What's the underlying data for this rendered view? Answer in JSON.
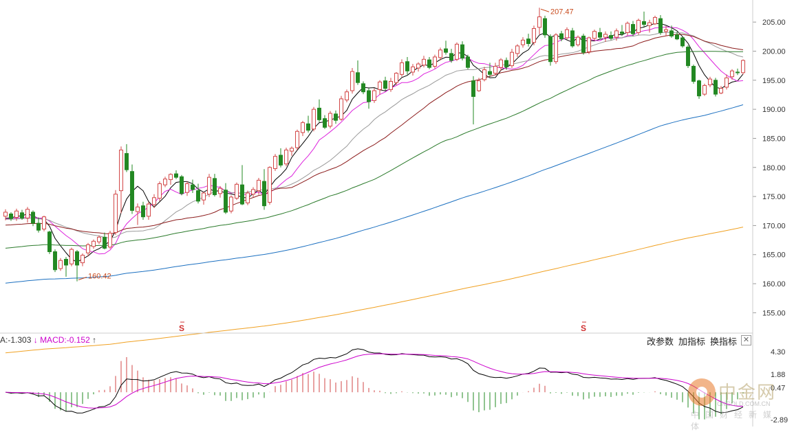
{
  "chart_data": {
    "type": "candlestick",
    "price_axis": {
      "ticks": [
        "205.00",
        "200.00",
        "195.00",
        "190.00",
        "185.00",
        "180.00",
        "175.00",
        "170.00",
        "165.00",
        "160.00",
        "155.00"
      ],
      "range": [
        151.5,
        208.8
      ]
    },
    "annotations": [
      {
        "label": "160.42",
        "index": 13,
        "value": 160.42
      },
      {
        "label": "207.47",
        "index": 97,
        "value": 207.47
      }
    ],
    "s_markers": [
      {
        "index": 32,
        "label": "S"
      },
      {
        "index": 105,
        "label": "S"
      }
    ],
    "candles_ohlc": [
      [
        171.6,
        172.8,
        170.9,
        172.3
      ],
      [
        172.0,
        172.3,
        170.8,
        171.2
      ],
      [
        171.4,
        172.9,
        170.8,
        172.5
      ],
      [
        172.2,
        172.7,
        171.0,
        171.3
      ],
      [
        171.3,
        173.2,
        170.5,
        172.8
      ],
      [
        172.3,
        172.6,
        169.9,
        170.4
      ],
      [
        170.4,
        171.4,
        168.8,
        169.2
      ],
      [
        169.4,
        171.7,
        169.0,
        171.5
      ],
      [
        168.9,
        169.1,
        165.1,
        165.5
      ],
      [
        165.5,
        165.9,
        162.0,
        162.4
      ],
      [
        162.6,
        164.4,
        162.2,
        164.0
      ],
      [
        164.2,
        164.6,
        161.2,
        163.2
      ],
      [
        163.4,
        166.2,
        163.0,
        165.9
      ],
      [
        165.5,
        165.8,
        160.4,
        163.2
      ],
      [
        163.6,
        165.2,
        163.0,
        164.9
      ],
      [
        165.3,
        167.0,
        164.7,
        166.7
      ],
      [
        166.4,
        167.6,
        166.0,
        167.3
      ],
      [
        167.2,
        168.3,
        166.8,
        168.0
      ],
      [
        168.0,
        168.8,
        165.9,
        166.1
      ],
      [
        166.3,
        169.1,
        166.0,
        168.7
      ],
      [
        168.8,
        176.1,
        168.4,
        175.4
      ],
      [
        176.0,
        183.6,
        172.1,
        183.0
      ],
      [
        182.4,
        184.0,
        179.2,
        179.6
      ],
      [
        179.3,
        180.5,
        172.0,
        172.6
      ],
      [
        172.4,
        173.8,
        170.1,
        173.2
      ],
      [
        173.4,
        174.1,
        171.0,
        171.5
      ],
      [
        171.6,
        174.1,
        171.0,
        173.7
      ],
      [
        173.6,
        175.4,
        173.0,
        174.8
      ],
      [
        174.7,
        177.6,
        174.2,
        177.2
      ],
      [
        177.0,
        178.4,
        176.6,
        178.0
      ],
      [
        177.9,
        179.0,
        177.0,
        178.8
      ],
      [
        178.9,
        179.5,
        178.0,
        178.3
      ],
      [
        178.4,
        178.7,
        175.2,
        175.5
      ],
      [
        175.7,
        177.6,
        175.1,
        177.2
      ],
      [
        177.0,
        177.9,
        175.6,
        176.2
      ],
      [
        176.0,
        177.2,
        173.8,
        174.2
      ],
      [
        174.4,
        175.8,
        173.6,
        175.6
      ],
      [
        175.4,
        178.9,
        174.9,
        178.3
      ],
      [
        178.1,
        178.9,
        175.0,
        175.3
      ],
      [
        175.5,
        176.8,
        174.8,
        176.4
      ],
      [
        176.1,
        177.3,
        172.0,
        172.3
      ],
      [
        172.5,
        175.2,
        172.1,
        174.9
      ],
      [
        174.7,
        177.4,
        174.4,
        177.1
      ],
      [
        177.0,
        180.4,
        173.5,
        173.7
      ],
      [
        173.9,
        176.0,
        173.5,
        175.6
      ],
      [
        175.4,
        176.6,
        174.9,
        176.2
      ],
      [
        176.0,
        178.2,
        175.3,
        177.8
      ],
      [
        177.6,
        179.7,
        172.7,
        173.4
      ],
      [
        174.0,
        180.2,
        173.6,
        180.0
      ],
      [
        179.8,
        182.3,
        179.4,
        181.9
      ],
      [
        182.1,
        183.3,
        180.0,
        180.4
      ],
      [
        180.6,
        183.4,
        180.2,
        183.0
      ],
      [
        182.8,
        183.6,
        182.0,
        183.3
      ],
      [
        183.4,
        186.5,
        183.0,
        186.2
      ],
      [
        186.0,
        188.0,
        185.4,
        187.7
      ],
      [
        187.5,
        188.9,
        186.0,
        186.4
      ],
      [
        186.6,
        190.4,
        186.2,
        190.0
      ],
      [
        190.2,
        191.7,
        187.8,
        188.2
      ],
      [
        188.4,
        189.0,
        186.6,
        186.9
      ],
      [
        187.1,
        189.7,
        186.7,
        189.3
      ],
      [
        189.2,
        189.8,
        187.5,
        188.1
      ],
      [
        188.3,
        192.3,
        188.0,
        191.8
      ],
      [
        191.6,
        193.4,
        191.2,
        193.0
      ],
      [
        193.2,
        197.1,
        192.7,
        196.5
      ],
      [
        196.3,
        198.4,
        194.2,
        194.6
      ],
      [
        194.4,
        194.8,
        192.6,
        193.0
      ],
      [
        193.2,
        193.6,
        190.1,
        191.3
      ],
      [
        191.5,
        193.6,
        191.1,
        193.2
      ],
      [
        193.4,
        195.0,
        192.5,
        194.7
      ],
      [
        194.9,
        195.6,
        193.2,
        193.6
      ],
      [
        193.4,
        195.4,
        193.0,
        194.8
      ],
      [
        194.6,
        196.4,
        194.2,
        196.2
      ],
      [
        196.0,
        198.6,
        195.6,
        198.0
      ],
      [
        198.2,
        199.0,
        196.0,
        196.6
      ],
      [
        196.4,
        197.8,
        195.8,
        197.3
      ],
      [
        197.1,
        198.1,
        196.5,
        197.8
      ],
      [
        197.6,
        199.2,
        197.2,
        198.6
      ],
      [
        198.5,
        199.0,
        196.9,
        197.2
      ],
      [
        197.4,
        199.4,
        197.0,
        199.0
      ],
      [
        198.9,
        200.6,
        198.4,
        200.2
      ],
      [
        200.4,
        201.8,
        199.4,
        199.8
      ],
      [
        199.6,
        200.4,
        198.0,
        198.4
      ],
      [
        198.6,
        201.5,
        198.3,
        201.2
      ],
      [
        201.1,
        201.7,
        198.4,
        198.8
      ],
      [
        199.0,
        199.4,
        196.9,
        197.2
      ],
      [
        194.9,
        195.7,
        187.4,
        192.2
      ],
      [
        193.2,
        195.4,
        193.0,
        194.9
      ],
      [
        195.1,
        197.3,
        194.8,
        196.8
      ],
      [
        196.5,
        198.0,
        195.6,
        196.0
      ],
      [
        196.2,
        198.0,
        195.8,
        197.4
      ],
      [
        197.2,
        198.8,
        196.6,
        198.5
      ],
      [
        198.4,
        198.9,
        196.8,
        197.3
      ],
      [
        197.5,
        200.4,
        197.1,
        199.8
      ],
      [
        199.6,
        201.2,
        199.0,
        200.9
      ],
      [
        201.1,
        202.4,
        200.6,
        201.9
      ],
      [
        202.1,
        203.0,
        200.8,
        201.3
      ],
      [
        201.5,
        204.4,
        201.0,
        203.9
      ],
      [
        204.1,
        207.47,
        202.9,
        205.9
      ],
      [
        205.6,
        206.1,
        202.3,
        202.8
      ],
      [
        202.5,
        202.9,
        197.5,
        198.2
      ],
      [
        198.2,
        203.1,
        197.8,
        202.8
      ],
      [
        203.0,
        203.5,
        201.7,
        202.1
      ],
      [
        202.3,
        204.1,
        202.0,
        203.7
      ],
      [
        203.5,
        204.0,
        200.6,
        200.9
      ],
      [
        201.1,
        202.7,
        200.8,
        202.4
      ],
      [
        202.6,
        203.0,
        199.4,
        199.8
      ],
      [
        199.9,
        202.5,
        199.5,
        202.3
      ],
      [
        202.2,
        203.7,
        201.8,
        203.4
      ],
      [
        203.2,
        204.0,
        202.0,
        202.4
      ],
      [
        202.4,
        203.4,
        201.6,
        202.9
      ],
      [
        202.7,
        203.4,
        201.9,
        202.2
      ],
      [
        202.4,
        203.9,
        201.8,
        203.5
      ],
      [
        203.3,
        204.5,
        202.6,
        203.0
      ],
      [
        203.2,
        205.1,
        202.7,
        204.8
      ],
      [
        204.6,
        205.2,
        202.6,
        203.0
      ],
      [
        203.2,
        205.6,
        202.8,
        205.3
      ],
      [
        205.1,
        206.8,
        204.2,
        204.6
      ],
      [
        204.4,
        205.4,
        203.2,
        204.9
      ],
      [
        204.7,
        206.1,
        204.5,
        205.8
      ],
      [
        205.6,
        206.2,
        202.8,
        203.2
      ],
      [
        203.4,
        204.3,
        202.6,
        203.7
      ],
      [
        203.5,
        204.4,
        202.3,
        202.6
      ],
      [
        202.8,
        203.3,
        201.9,
        202.1
      ],
      [
        202.3,
        202.4,
        200.6,
        200.9
      ],
      [
        200.7,
        201.0,
        197.1,
        197.5
      ],
      [
        197.4,
        197.7,
        194.4,
        194.8
      ],
      [
        194.9,
        195.1,
        191.8,
        192.3
      ],
      [
        192.6,
        194.4,
        192.3,
        194.1
      ],
      [
        194.2,
        195.6,
        193.8,
        195.2
      ],
      [
        195.0,
        195.4,
        192.2,
        192.6
      ],
      [
        192.8,
        194.0,
        192.6,
        193.6
      ],
      [
        193.8,
        196.0,
        193.4,
        195.4
      ],
      [
        195.6,
        196.9,
        195.1,
        196.6
      ],
      [
        196.4,
        197.0,
        195.9,
        196.3
      ],
      [
        196.3,
        198.6,
        196.0,
        198.4
      ]
    ],
    "macd_panel": {
      "readout_prefix": "A:-1.303",
      "readout_macd": "MACD:-0.152",
      "ticks": [
        "4.30",
        "1.88",
        "0.47",
        "-2.89"
      ],
      "range": [
        -3.4,
        4.8
      ]
    },
    "colors": {
      "up": "#d24545",
      "down": "#228822",
      "ma_fast": "#000000",
      "ma_mid": "#dd22dd",
      "ma_slow": "#999999",
      "ma_long": "#8b1a1a",
      "ma_green": "#2a7a2a",
      "ma_blue": "#1a6fc0",
      "ma_orange": "#f0a020",
      "dif": "#000000",
      "dea": "#cc00cc"
    }
  },
  "toolbar": {
    "btn1": "改参数",
    "btn2": "加指标",
    "btn3": "换指标",
    "close": "✕"
  },
  "watermark": {
    "title": "中金网",
    "url": "CNGOLD.COM.CN",
    "slogan": "中国财经新媒体"
  }
}
